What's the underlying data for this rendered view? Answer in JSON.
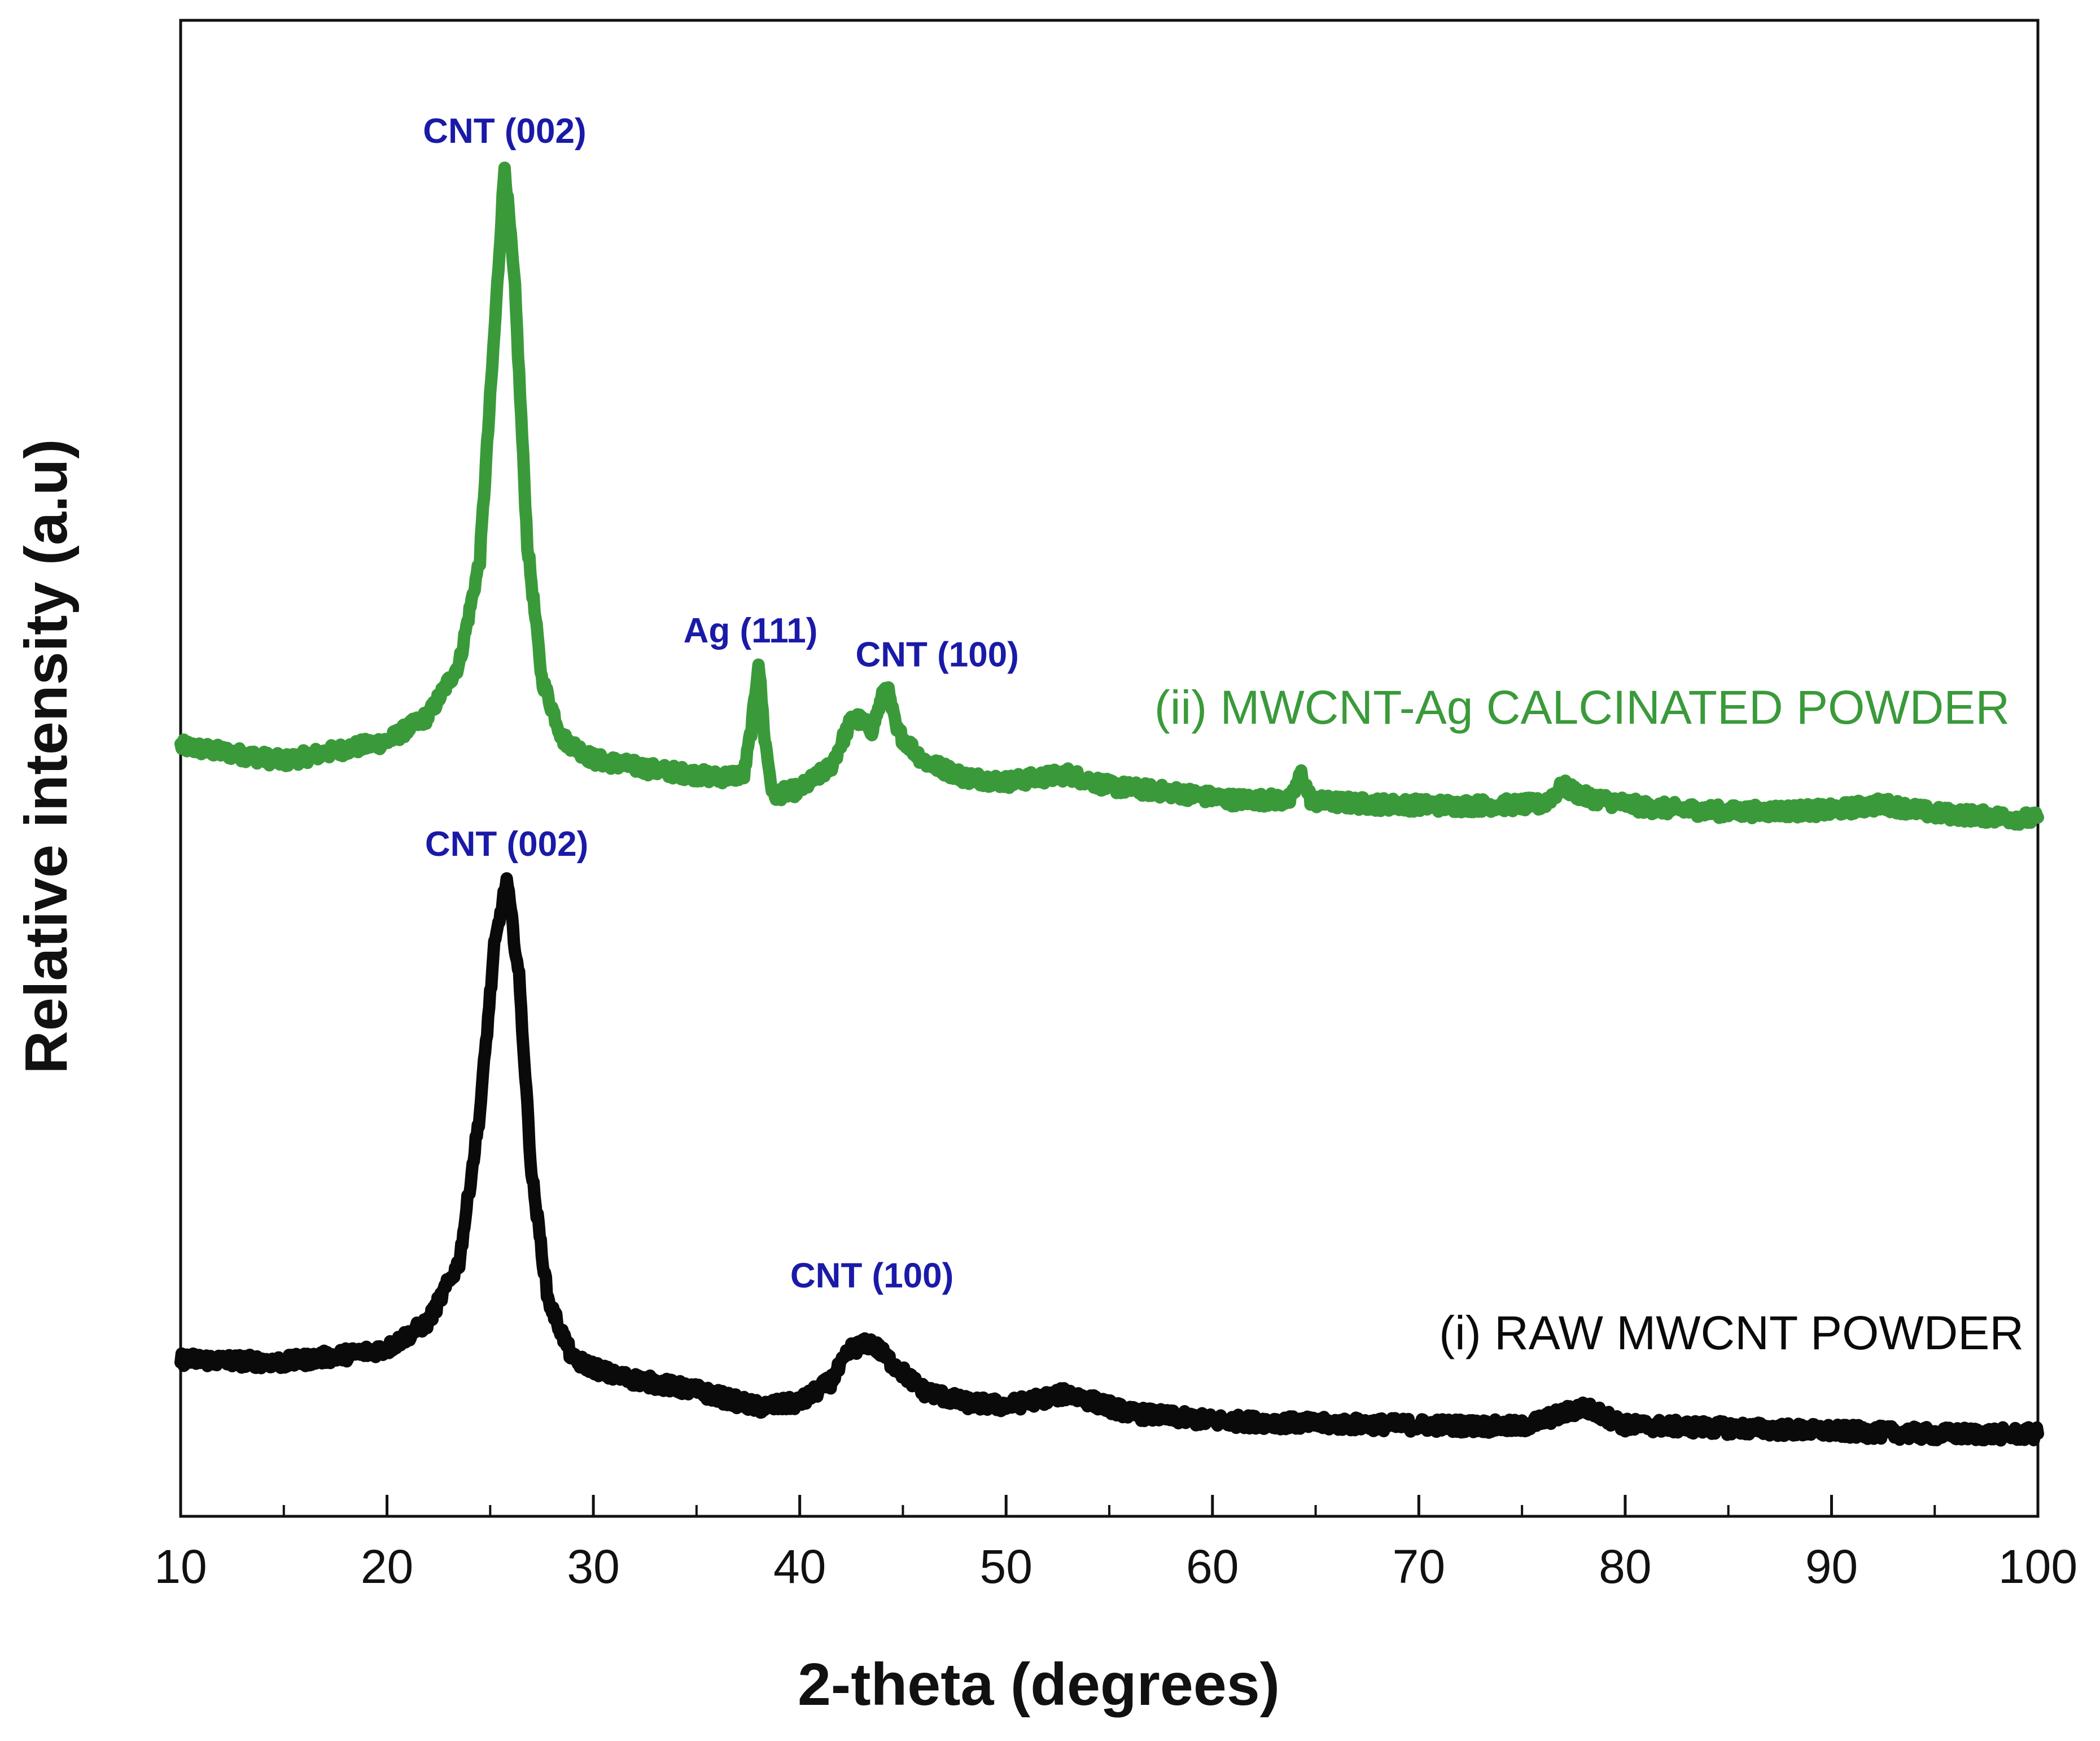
{
  "chart_data": {
    "type": "line",
    "title": "",
    "xlabel": "2-theta (degrees)",
    "ylabel": "Relative intensity (a.u)",
    "xlim": [
      10,
      100
    ],
    "ylim": [
      0,
      100
    ],
    "xticks": [
      10,
      20,
      30,
      40,
      50,
      60,
      70,
      80,
      90,
      100
    ],
    "xticks_minor": [
      15,
      25,
      35,
      45,
      55,
      65,
      75,
      85,
      95
    ],
    "grid": false,
    "colors": {
      "axis": "#111111",
      "annotation": "#1a1aa8"
    },
    "series": [
      {
        "name": "(ii) MWCNT-Ag CALCINATED POWDER",
        "color": "#3a9a3a",
        "points": [
          [
            10,
            51.5
          ],
          [
            15,
            50.5
          ],
          [
            18,
            51.3
          ],
          [
            20,
            51.8
          ],
          [
            22,
            53.5
          ],
          [
            23.5,
            57
          ],
          [
            24.5,
            64
          ],
          [
            25.2,
            79
          ],
          [
            25.7,
            90.3
          ],
          [
            26.2,
            82
          ],
          [
            26.8,
            65
          ],
          [
            27.5,
            56
          ],
          [
            28.5,
            52
          ],
          [
            30,
            50.6
          ],
          [
            33,
            49.9
          ],
          [
            36,
            49.4
          ],
          [
            37.3,
            49.6
          ],
          [
            37.7,
            53
          ],
          [
            38,
            57.2
          ],
          [
            38.3,
            52
          ],
          [
            38.7,
            48.2
          ],
          [
            40,
            48.6
          ],
          [
            41.5,
            50.1
          ],
          [
            42.6,
            53.5
          ],
          [
            43.5,
            52.6
          ],
          [
            44.2,
            55.6
          ],
          [
            44.7,
            52.5
          ],
          [
            46,
            50.5
          ],
          [
            48,
            49.4
          ],
          [
            50,
            49.1
          ],
          [
            53,
            49.6
          ],
          [
            55,
            48.8
          ],
          [
            58,
            48.4
          ],
          [
            61,
            47.9
          ],
          [
            63.8,
            47.9
          ],
          [
            64.3,
            49.6
          ],
          [
            64.8,
            47.8
          ],
          [
            68,
            47.6
          ],
          [
            72,
            47.5
          ],
          [
            76,
            47.6
          ],
          [
            77,
            48.8
          ],
          [
            78,
            48.1
          ],
          [
            81,
            47.4
          ],
          [
            85,
            47.1
          ],
          [
            90,
            47.2
          ],
          [
            92.5,
            47.6
          ],
          [
            95,
            47.0
          ],
          [
            100,
            46.6
          ]
        ],
        "annotations": [
          {
            "text": "CNT (002)",
            "x": 25.7,
            "y": 90.3
          },
          {
            "text": "Ag (111)",
            "x": 38.0,
            "y": 57.2
          },
          {
            "text": "CNT (100)",
            "x": 44.2,
            "y": 55.6
          }
        ]
      },
      {
        "name": "(i) RAW MWCNT POWDER",
        "color": "#0a0a0a",
        "points": [
          [
            10,
            10.5
          ],
          [
            15,
            10.3
          ],
          [
            18,
            10.8
          ],
          [
            20,
            11.2
          ],
          [
            22,
            13
          ],
          [
            23.5,
            17
          ],
          [
            24.5,
            27
          ],
          [
            25.2,
            38
          ],
          [
            25.8,
            42.5
          ],
          [
            26.4,
            36
          ],
          [
            27,
            23
          ],
          [
            27.8,
            14.5
          ],
          [
            29,
            10.5
          ],
          [
            31,
            9.4
          ],
          [
            35,
            8.4
          ],
          [
            38,
            7.3
          ],
          [
            40,
            7.6
          ],
          [
            41.5,
            9
          ],
          [
            42.5,
            11.2
          ],
          [
            43.5,
            11.6
          ],
          [
            44.5,
            10.2
          ],
          [
            46,
            8.4
          ],
          [
            48,
            7.6
          ],
          [
            50,
            7.4
          ],
          [
            53,
            8.2
          ],
          [
            56,
            6.9
          ],
          [
            60,
            6.4
          ],
          [
            65,
            6.2
          ],
          [
            70,
            6.1
          ],
          [
            75,
            6.0
          ],
          [
            78,
            7.3
          ],
          [
            80,
            6.1
          ],
          [
            85,
            5.9
          ],
          [
            90,
            5.7
          ],
          [
            95,
            5.5
          ],
          [
            100,
            5.5
          ]
        ],
        "annotations": [
          {
            "text": "CNT (002)",
            "x": 25.8,
            "y": 42.5
          },
          {
            "text": "CNT (100)",
            "x": 43.5,
            "y": 11.6
          }
        ]
      }
    ]
  }
}
